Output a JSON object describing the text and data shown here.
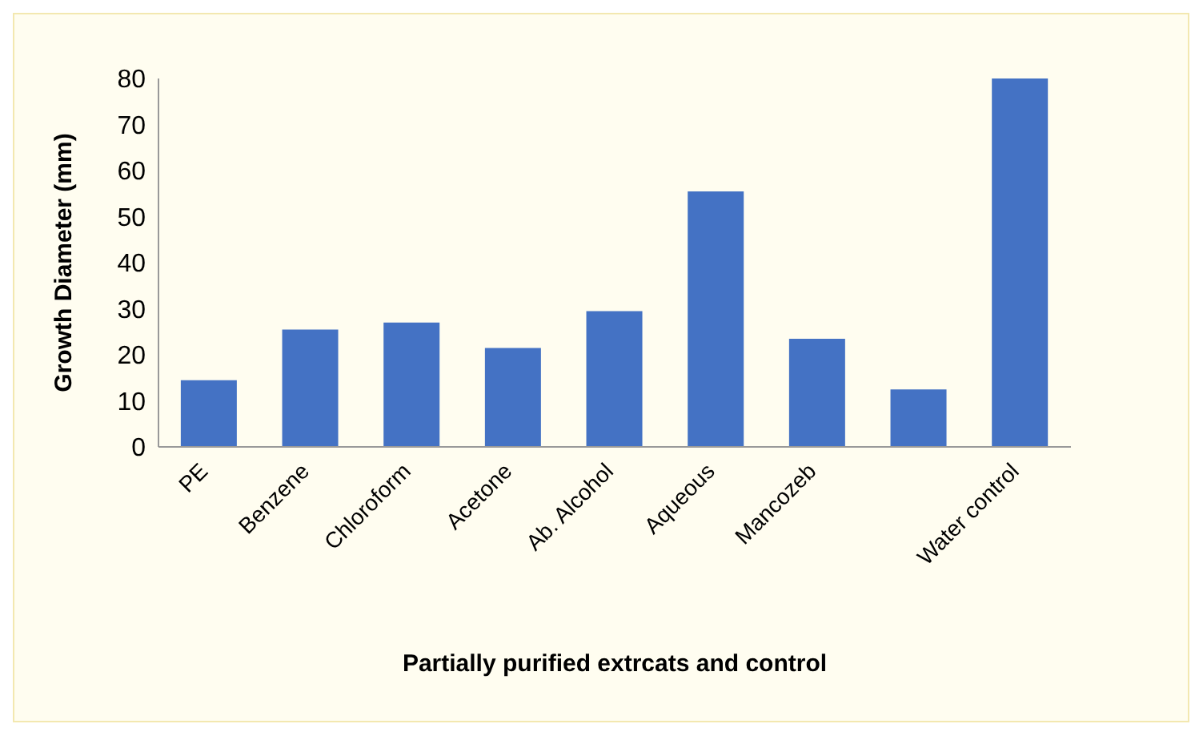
{
  "chart_data": {
    "type": "bar",
    "xlabel": "Partially purified extrcats and control",
    "ylabel": "Growth Diameter (mm)",
    "categories": [
      "PE",
      "Benzene",
      "Chloroform",
      "Acetone",
      "Ab. Alcohol",
      "Aqueous",
      "Mancozeb",
      null,
      "Water control"
    ],
    "values": [
      14.5,
      25.5,
      27,
      21.5,
      29.5,
      55.5,
      23.5,
      12.5,
      80
    ],
    "color": "#4472c4",
    "ylim": [
      0,
      80
    ],
    "yticks": [
      0,
      10,
      20,
      30,
      40,
      50,
      60,
      70,
      80
    ]
  }
}
